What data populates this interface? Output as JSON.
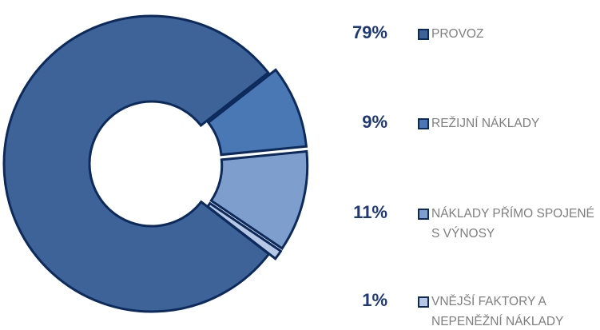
{
  "chart_data": {
    "type": "pie",
    "donut": true,
    "categories": [
      "PROVOZ",
      "REŽIJNÍ NÁKLADY",
      "NÁKLADY PŘÍMO SPOJENÉ S VÝNOSY",
      "VNĚJŠÍ FAKTORY A NEPENĚŽNÍ NÁKLADY"
    ],
    "values": [
      79,
      9,
      11,
      1
    ],
    "value_labels": [
      "79%",
      "9%",
      "11%",
      "1%"
    ],
    "colors": [
      "#3d6399",
      "#4a78b5",
      "#7e9ecd",
      "#b7c8e5"
    ]
  }
}
